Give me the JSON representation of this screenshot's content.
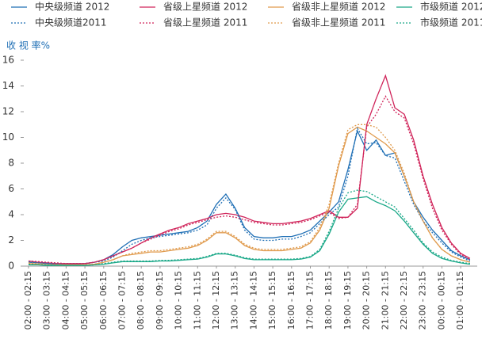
{
  "chart_data": {
    "type": "line",
    "ylabel": "收 视 率%",
    "categories": [
      "02:00 - 02:15",
      null,
      "03:00 - 03:15",
      null,
      "04:00 - 04:15",
      null,
      "05:00 - 05:15",
      null,
      "06:00 - 06:15",
      null,
      "07:00 - 07:15",
      null,
      "08:00 - 08:15",
      null,
      "09:00 - 09:15",
      null,
      "10:00 - 10:15",
      null,
      "11:00 - 11:15",
      null,
      "12:00 - 12:15",
      null,
      "13:00 - 13:15",
      null,
      "14:00 - 14:15",
      null,
      "15:00 - 15:15",
      null,
      "16:00 - 16:15",
      null,
      "17:00 - 17:15",
      null,
      "18:00 - 18:15",
      null,
      "19:00 - 19:15",
      null,
      "20:00 - 20:15",
      null,
      "21:00 - 21:15",
      null,
      "22:00 - 22:15",
      null,
      "23:00 - 23:15",
      null,
      "00:00 - 00:15",
      null,
      "01:00 - 01:15",
      null
    ],
    "ylim": [
      0,
      16
    ],
    "yticks": [
      0,
      2,
      4,
      6,
      8,
      10,
      12,
      14,
      16
    ],
    "series": [
      {
        "name": "中央级频道 2012",
        "color": "#1f6fb5",
        "dashed": false,
        "values": [
          0.3,
          0.25,
          0.2,
          0.15,
          0.15,
          0.15,
          0.2,
          0.3,
          0.5,
          0.9,
          1.5,
          2.0,
          2.2,
          2.3,
          2.4,
          2.5,
          2.6,
          2.7,
          3.0,
          3.5,
          4.8,
          5.6,
          4.5,
          3.0,
          2.3,
          2.2,
          2.2,
          2.3,
          2.3,
          2.5,
          2.8,
          3.5,
          4.2,
          5.0,
          7.5,
          10.5,
          9.0,
          9.8,
          8.6,
          8.8,
          7.0,
          5.0,
          3.8,
          2.8,
          2.0,
          1.2,
          0.8,
          0.5
        ]
      },
      {
        "name": "省级上星频道 2012",
        "color": "#d0245a",
        "dashed": false,
        "values": [
          0.4,
          0.3,
          0.25,
          0.2,
          0.2,
          0.2,
          0.2,
          0.3,
          0.5,
          0.8,
          1.1,
          1.4,
          1.8,
          2.2,
          2.5,
          2.8,
          3.0,
          3.3,
          3.5,
          3.7,
          4.0,
          4.1,
          4.0,
          3.8,
          3.5,
          3.4,
          3.3,
          3.3,
          3.4,
          3.5,
          3.7,
          4.0,
          4.3,
          3.8,
          3.8,
          4.5,
          11.0,
          13.0,
          14.8,
          12.3,
          11.8,
          9.8,
          7.0,
          4.8,
          3.0,
          1.8,
          1.0,
          0.6
        ]
      },
      {
        "name": "省级非上星频道 2012",
        "color": "#e09a4c",
        "dashed": false,
        "values": [
          0.2,
          0.15,
          0.1,
          0.1,
          0.1,
          0.1,
          0.1,
          0.15,
          0.3,
          0.5,
          0.8,
          0.9,
          1.0,
          1.1,
          1.1,
          1.2,
          1.3,
          1.4,
          1.6,
          2.0,
          2.6,
          2.6,
          2.2,
          1.6,
          1.3,
          1.2,
          1.2,
          1.2,
          1.3,
          1.4,
          1.8,
          2.8,
          4.5,
          7.8,
          10.3,
          10.8,
          10.5,
          10.0,
          9.5,
          8.8,
          7.0,
          5.0,
          3.5,
          2.2,
          1.3,
          0.8,
          0.5,
          0.3
        ]
      },
      {
        "name": "市级频道 2012",
        "color": "#1aa888",
        "dashed": false,
        "values": [
          0.1,
          0.1,
          0.05,
          0.05,
          0.05,
          0.05,
          0.05,
          0.1,
          0.15,
          0.25,
          0.35,
          0.35,
          0.35,
          0.35,
          0.4,
          0.4,
          0.45,
          0.5,
          0.55,
          0.7,
          0.95,
          0.95,
          0.8,
          0.6,
          0.5,
          0.5,
          0.5,
          0.5,
          0.5,
          0.55,
          0.7,
          1.2,
          2.5,
          4.2,
          5.2,
          5.3,
          5.4,
          5.0,
          4.7,
          4.3,
          3.5,
          2.6,
          1.7,
          1.0,
          0.6,
          0.4,
          0.25,
          0.15
        ]
      },
      {
        "name": "中央级频道2011",
        "color": "#1f6fb5",
        "dashed": true,
        "values": [
          0.35,
          0.3,
          0.25,
          0.2,
          0.2,
          0.2,
          0.2,
          0.3,
          0.4,
          0.7,
          1.2,
          1.7,
          2.0,
          2.2,
          2.3,
          2.4,
          2.5,
          2.6,
          2.8,
          3.2,
          4.5,
          5.3,
          4.4,
          2.8,
          2.1,
          2.0,
          2.0,
          2.1,
          2.1,
          2.3,
          2.6,
          3.3,
          4.0,
          4.6,
          7.0,
          10.7,
          9.5,
          9.6,
          8.6,
          8.4,
          6.6,
          4.8,
          3.5,
          2.6,
          1.8,
          1.1,
          0.7,
          0.4
        ]
      },
      {
        "name": "省级上星频道 2011",
        "color": "#d0245a",
        "dashed": true,
        "values": [
          0.4,
          0.35,
          0.3,
          0.25,
          0.2,
          0.2,
          0.2,
          0.3,
          0.5,
          0.8,
          1.1,
          1.4,
          1.8,
          2.1,
          2.4,
          2.7,
          2.9,
          3.2,
          3.4,
          3.6,
          3.8,
          3.9,
          3.8,
          3.6,
          3.4,
          3.3,
          3.2,
          3.2,
          3.3,
          3.4,
          3.6,
          3.9,
          4.2,
          3.7,
          3.8,
          4.8,
          10.8,
          11.8,
          13.2,
          12.0,
          11.5,
          9.5,
          6.8,
          4.5,
          2.8,
          1.7,
          0.9,
          0.5
        ]
      },
      {
        "name": "省级非上星频道 2011",
        "color": "#e09a4c",
        "dashed": true,
        "values": [
          0.25,
          0.2,
          0.15,
          0.1,
          0.1,
          0.1,
          0.1,
          0.15,
          0.3,
          0.5,
          0.8,
          1.0,
          1.1,
          1.2,
          1.2,
          1.3,
          1.4,
          1.5,
          1.7,
          2.1,
          2.7,
          2.7,
          2.3,
          1.7,
          1.4,
          1.3,
          1.3,
          1.3,
          1.4,
          1.5,
          1.9,
          3.0,
          4.8,
          8.0,
          10.6,
          11.0,
          11.0,
          10.8,
          10.0,
          9.0,
          7.2,
          5.0,
          3.5,
          2.2,
          1.3,
          0.8,
          0.5,
          0.3
        ]
      },
      {
        "name": "市级频道 2011",
        "color": "#1aa888",
        "dashed": true,
        "values": [
          0.15,
          0.1,
          0.1,
          0.05,
          0.05,
          0.05,
          0.05,
          0.1,
          0.2,
          0.3,
          0.4,
          0.4,
          0.4,
          0.4,
          0.45,
          0.45,
          0.5,
          0.55,
          0.6,
          0.75,
          1.0,
          1.0,
          0.85,
          0.65,
          0.55,
          0.55,
          0.55,
          0.55,
          0.55,
          0.6,
          0.75,
          1.3,
          2.7,
          4.5,
          5.7,
          5.9,
          5.8,
          5.4,
          5.0,
          4.6,
          3.7,
          2.8,
          1.8,
          1.1,
          0.7,
          0.45,
          0.3,
          0.2
        ]
      }
    ]
  }
}
